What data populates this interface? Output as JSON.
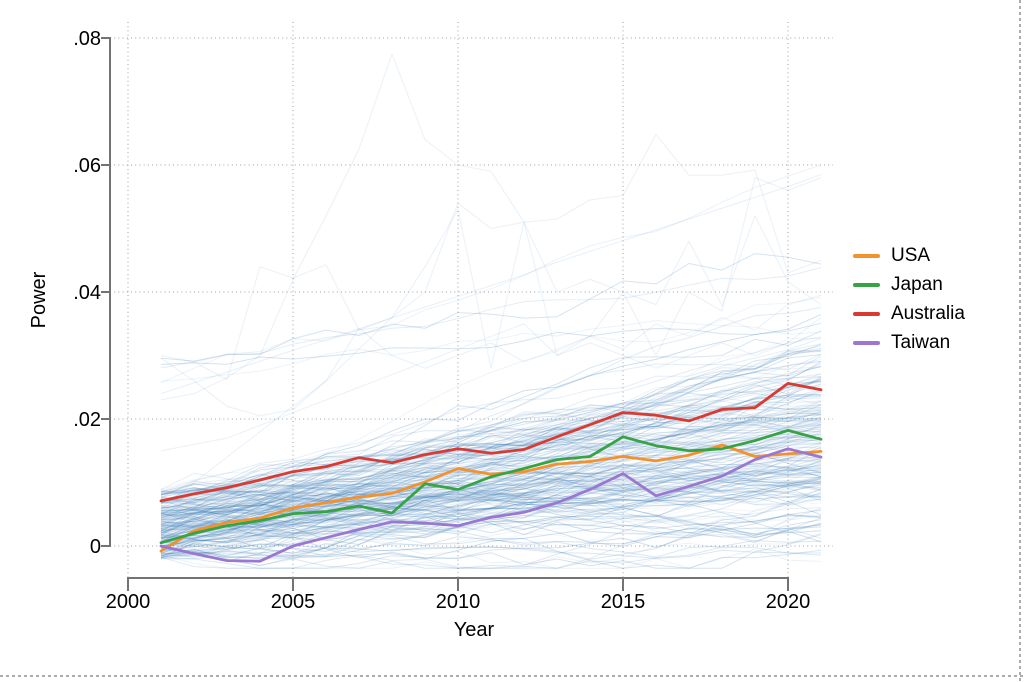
{
  "chart_data": {
    "type": "line",
    "title": "",
    "xlabel": "Year",
    "ylabel": "Power",
    "x_ticks": [
      2000,
      2005,
      2010,
      2015,
      2020
    ],
    "y_ticks": [
      0,
      0.02,
      0.04,
      0.06,
      0.08
    ],
    "y_tick_labels": [
      "0",
      ".02",
      ".04",
      ".06",
      ".08"
    ],
    "xlim": [
      2000,
      2021.5
    ],
    "ylim": [
      -0.004,
      0.082
    ],
    "grid": "dotted gridlines at every x and y tick",
    "legend_position": "right of plot, no border",
    "x": [
      2001,
      2002,
      2003,
      2004,
      2005,
      2006,
      2007,
      2008,
      2009,
      2010,
      2011,
      2012,
      2013,
      2014,
      2015,
      2016,
      2017,
      2018,
      2019,
      2020,
      2021
    ],
    "series": [
      {
        "name": "USA",
        "color": "#F2912E",
        "values": [
          -0.0008,
          0.0024,
          0.0037,
          0.0044,
          0.006,
          0.0068,
          0.0077,
          0.0083,
          0.0101,
          0.0122,
          0.0113,
          0.0117,
          0.0129,
          0.0133,
          0.0141,
          0.0134,
          0.0143,
          0.0159,
          0.0141,
          0.0145,
          0.0149
        ]
      },
      {
        "name": "Japan",
        "color": "#37A345",
        "values": [
          0.0005,
          0.002,
          0.0032,
          0.004,
          0.0051,
          0.0054,
          0.0063,
          0.0052,
          0.0098,
          0.0089,
          0.0109,
          0.0122,
          0.0136,
          0.0141,
          0.0172,
          0.0158,
          0.015,
          0.0153,
          0.0166,
          0.0182,
          0.0168
        ]
      },
      {
        "name": "Australia",
        "color": "#D93A32",
        "values": [
          0.0071,
          0.0082,
          0.0092,
          0.0104,
          0.0117,
          0.0125,
          0.0139,
          0.0131,
          0.0144,
          0.0153,
          0.0146,
          0.0152,
          0.0172,
          0.0191,
          0.021,
          0.0206,
          0.0197,
          0.0215,
          0.0218,
          0.0256,
          0.0246
        ]
      },
      {
        "name": "Taiwan",
        "color": "#9B77D1",
        "values": [
          0.0,
          -0.0012,
          -0.0023,
          -0.0024,
          0.0,
          0.0013,
          0.0026,
          0.0038,
          0.0036,
          0.0032,
          0.0045,
          0.0053,
          0.0068,
          0.0089,
          0.0114,
          0.0079,
          0.0094,
          0.011,
          0.0136,
          0.0153,
          0.014
        ]
      }
    ],
    "background_ensemble": {
      "description": "Several hundred thin translucent steel-blue lines (all other countries / simulations), densest between 0 and 0.02, fanning upward from ~0.004 in 2001 to ~0.000-0.035 by 2021, with a few faint outliers reaching 0.078.",
      "color": "#3E7FB8",
      "count": 215,
      "seed": 20240413,
      "start_range": [
        -0.002,
        0.009
      ],
      "drift_per_year": [
        0.0002,
        0.0013
      ],
      "volatility": [
        0.0008,
        0.0024
      ],
      "opacity_range": [
        0.05,
        0.25
      ],
      "outliers": [
        {
          "opacity": 0.1,
          "values": [
            0.023,
            0.024,
            0.0265,
            0.03,
            0.042,
            0.052,
            0.0625,
            0.0775,
            0.064,
            0.06,
            0.059,
            0.051,
            0.0515,
            0.0545,
            0.0552,
            0.0648,
            0.0584,
            0.0584,
            0.0592,
            0.043,
            0.045
          ]
        },
        {
          "opacity": 0.1,
          "values": [
            0.03,
            0.029,
            0.0262,
            0.044,
            0.0422,
            0.0443,
            0.034,
            0.036,
            0.04,
            0.054,
            0.05,
            0.051,
            0.04,
            0.042,
            0.04,
            0.038,
            0.048,
            0.0378,
            0.052,
            0.0416,
            0.038
          ]
        },
        {
          "opacity": 0.11,
          "values": [
            0.024,
            0.0257,
            0.0274,
            0.0291,
            0.0308,
            0.0325,
            0.0342,
            0.0359,
            0.0376,
            0.0393,
            0.041,
            0.0427,
            0.0447,
            0.0464,
            0.0481,
            0.0498,
            0.0515,
            0.0532,
            0.0549,
            0.0566,
            0.0585
          ]
        },
        {
          "opacity": 0.1,
          "values": [
            0.0296,
            0.026,
            0.022,
            0.0205,
            0.0215,
            0.026,
            0.0343,
            0.03,
            0.028,
            0.03,
            0.032,
            0.029,
            0.031,
            0.033,
            0.031,
            0.035,
            0.033,
            0.036,
            0.034,
            0.038,
            0.0395
          ]
        },
        {
          "opacity": 0.1,
          "values": [
            0.006,
            0.01,
            0.014,
            0.018,
            0.022,
            0.026,
            0.031,
            0.036,
            0.044,
            0.053,
            0.028,
            0.051,
            0.03,
            0.032,
            0.03,
            0.028,
            0.03,
            0.032,
            0.03,
            0.032,
            0.036
          ]
        },
        {
          "opacity": 0.1,
          "values": [
            0.015,
            0.016,
            0.017,
            0.019,
            0.021,
            0.023,
            0.025,
            0.027,
            0.029,
            0.031,
            0.033,
            0.035,
            0.03,
            0.033,
            0.04,
            0.03,
            0.04,
            0.037,
            0.058,
            0.056,
            0.058
          ]
        }
      ]
    },
    "style": {
      "grid_color": "#9E9E9E",
      "axis_color": "#737373",
      "tick_label_color": "#000000",
      "page_border_color": "#ABABAB",
      "main_line_width": 2.8
    }
  }
}
